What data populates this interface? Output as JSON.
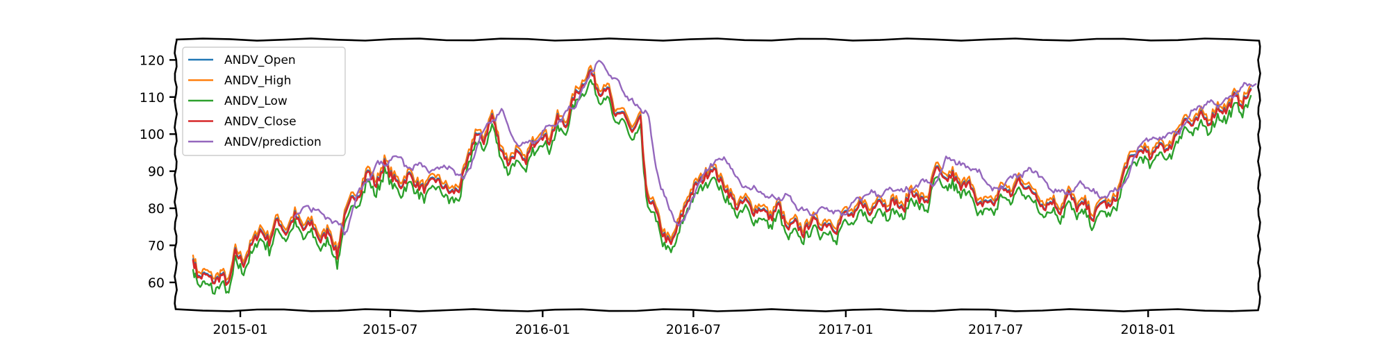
{
  "chart_data": {
    "type": "line",
    "title": "",
    "xlabel": "",
    "ylabel": "",
    "style": "xkcd-sketch",
    "xlim": [
      "2014-10-15",
      "2018-05-15"
    ],
    "ylim": [
      52.5,
      125.5
    ],
    "x_ticks": [
      "2015-01",
      "2015-07",
      "2016-01",
      "2016-07",
      "2017-01",
      "2017-07",
      "2018-01"
    ],
    "y_ticks": [
      60,
      70,
      80,
      90,
      100,
      110,
      120
    ],
    "legend": {
      "placement": "top-left",
      "entries": [
        "ANDV_Open",
        "ANDV_High",
        "ANDV_Low",
        "ANDV_Close",
        "ANDV/prediction"
      ]
    },
    "grid": false,
    "series": [
      {
        "name": "ANDV_Open",
        "color": "#1f77b4"
      },
      {
        "name": "ANDV_High",
        "color": "#ff7f0e"
      },
      {
        "name": "ANDV_Low",
        "color": "#2ca02c"
      },
      {
        "name": "ANDV_Close",
        "color": "#d62728"
      },
      {
        "name": "ANDV/prediction",
        "color": "#9467bd"
      }
    ],
    "close_path": [
      [
        "2014-11-05",
        66
      ],
      [
        "2014-11-12",
        61
      ],
      [
        "2014-11-20",
        62
      ],
      [
        "2014-12-01",
        60
      ],
      [
        "2014-12-10",
        62
      ],
      [
        "2014-12-18",
        59
      ],
      [
        "2014-12-26",
        68
      ],
      [
        "2015-01-05",
        65
      ],
      [
        "2015-01-15",
        70
      ],
      [
        "2015-01-25",
        74
      ],
      [
        "2015-02-05",
        71
      ],
      [
        "2015-02-15",
        77
      ],
      [
        "2015-02-25",
        73
      ],
      [
        "2015-03-08",
        78
      ],
      [
        "2015-03-18",
        74
      ],
      [
        "2015-03-28",
        76
      ],
      [
        "2015-04-08",
        71
      ],
      [
        "2015-04-18",
        74
      ],
      [
        "2015-04-28",
        67
      ],
      [
        "2015-05-05",
        76
      ],
      [
        "2015-05-15",
        82
      ],
      [
        "2015-05-25",
        84
      ],
      [
        "2015-06-04",
        90
      ],
      [
        "2015-06-14",
        86
      ],
      [
        "2015-06-24",
        92
      ],
      [
        "2015-07-04",
        88
      ],
      [
        "2015-07-14",
        86
      ],
      [
        "2015-07-24",
        89
      ],
      [
        "2015-08-03",
        86
      ],
      [
        "2015-08-13",
        85
      ],
      [
        "2015-08-23",
        88
      ],
      [
        "2015-09-02",
        86
      ],
      [
        "2015-09-12",
        84
      ],
      [
        "2015-09-22",
        85
      ],
      [
        "2015-10-02",
        92
      ],
      [
        "2015-10-12",
        100
      ],
      [
        "2015-10-22",
        98
      ],
      [
        "2015-11-01",
        105
      ],
      [
        "2015-11-10",
        97
      ],
      [
        "2015-11-20",
        92
      ],
      [
        "2015-11-30",
        95
      ],
      [
        "2015-12-10",
        92
      ],
      [
        "2015-12-20",
        97
      ],
      [
        "2015-12-30",
        100
      ],
      [
        "2016-01-09",
        98
      ],
      [
        "2016-01-19",
        104
      ],
      [
        "2016-01-29",
        102
      ],
      [
        "2016-02-08",
        110
      ],
      [
        "2016-02-18",
        113
      ],
      [
        "2016-02-28",
        117
      ],
      [
        "2016-03-09",
        111
      ],
      [
        "2016-03-19",
        113
      ],
      [
        "2016-03-29",
        104
      ],
      [
        "2016-04-08",
        106
      ],
      [
        "2016-04-18",
        100
      ],
      [
        "2016-04-28",
        104
      ],
      [
        "2016-05-05",
        84
      ],
      [
        "2016-05-15",
        80
      ],
      [
        "2016-05-25",
        73
      ],
      [
        "2016-06-04",
        70
      ],
      [
        "2016-06-14",
        76
      ],
      [
        "2016-06-24",
        82
      ],
      [
        "2016-07-04",
        86
      ],
      [
        "2016-07-14",
        88
      ],
      [
        "2016-07-24",
        91
      ],
      [
        "2016-08-03",
        87
      ],
      [
        "2016-08-13",
        84
      ],
      [
        "2016-08-23",
        80
      ],
      [
        "2016-09-02",
        82
      ],
      [
        "2016-09-12",
        79
      ],
      [
        "2016-09-22",
        80
      ],
      [
        "2016-10-02",
        77
      ],
      [
        "2016-10-12",
        81
      ],
      [
        "2016-10-22",
        74
      ],
      [
        "2016-11-01",
        76
      ],
      [
        "2016-11-11",
        73
      ],
      [
        "2016-11-21",
        77
      ],
      [
        "2016-12-01",
        75
      ],
      [
        "2016-12-11",
        76
      ],
      [
        "2016-12-21",
        74
      ],
      [
        "2016-12-31",
        79
      ],
      [
        "2017-01-10",
        77
      ],
      [
        "2017-01-20",
        82
      ],
      [
        "2017-01-30",
        78
      ],
      [
        "2017-02-09",
        83
      ],
      [
        "2017-02-19",
        80
      ],
      [
        "2017-03-01",
        82
      ],
      [
        "2017-03-11",
        79
      ],
      [
        "2017-03-21",
        85
      ],
      [
        "2017-03-31",
        82
      ],
      [
        "2017-04-10",
        82
      ],
      [
        "2017-04-20",
        91
      ],
      [
        "2017-04-30",
        87
      ],
      [
        "2017-05-10",
        89
      ],
      [
        "2017-05-20",
        85
      ],
      [
        "2017-05-30",
        88
      ],
      [
        "2017-06-09",
        80
      ],
      [
        "2017-06-19",
        82
      ],
      [
        "2017-06-29",
        81
      ],
      [
        "2017-07-09",
        86
      ],
      [
        "2017-07-19",
        83
      ],
      [
        "2017-07-29",
        88
      ],
      [
        "2017-08-08",
        85
      ],
      [
        "2017-08-18",
        84
      ],
      [
        "2017-08-28",
        80
      ],
      [
        "2017-09-07",
        82
      ],
      [
        "2017-09-17",
        79
      ],
      [
        "2017-09-27",
        84
      ],
      [
        "2017-10-07",
        80
      ],
      [
        "2017-10-17",
        81
      ],
      [
        "2017-10-27",
        77
      ],
      [
        "2017-11-06",
        82
      ],
      [
        "2017-11-16",
        80
      ],
      [
        "2017-11-26",
        84
      ],
      [
        "2017-12-06",
        92
      ],
      [
        "2017-12-16",
        94
      ],
      [
        "2017-12-26",
        96
      ],
      [
        "2018-01-05",
        93
      ],
      [
        "2018-01-15",
        98
      ],
      [
        "2018-01-25",
        95
      ],
      [
        "2018-02-04",
        100
      ],
      [
        "2018-02-14",
        104
      ],
      [
        "2018-02-24",
        102
      ],
      [
        "2018-03-06",
        105
      ],
      [
        "2018-03-16",
        103
      ],
      [
        "2018-03-26",
        107
      ],
      [
        "2018-04-05",
        106
      ],
      [
        "2018-04-15",
        110
      ],
      [
        "2018-04-25",
        108
      ],
      [
        "2018-05-05",
        112
      ]
    ]
  }
}
